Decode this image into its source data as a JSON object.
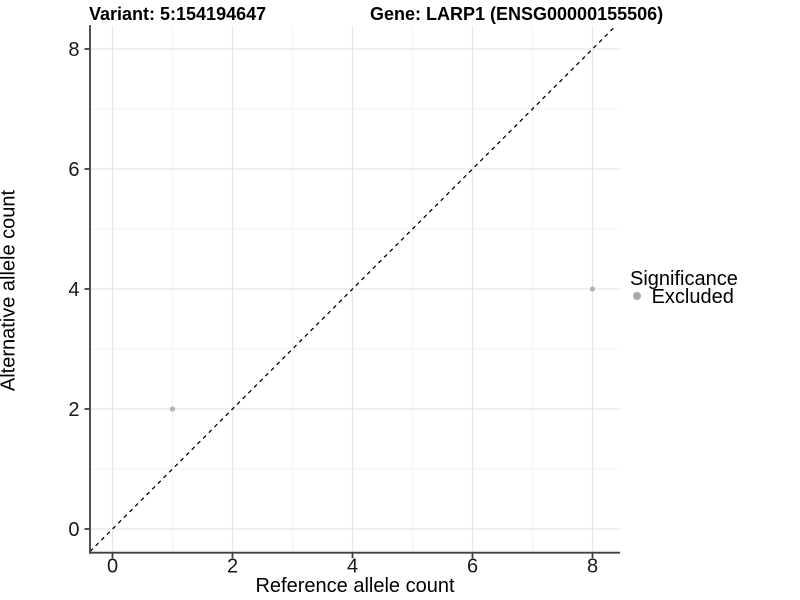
{
  "chart_data": {
    "type": "scatter",
    "titles": {
      "variant": "Variant: 5:154194647",
      "gene": "Gene: LARP1 (ENSG00000155506)"
    },
    "xlabel": "Reference allele count",
    "ylabel": "Alternative allele count",
    "x_ticks": [
      0,
      2,
      4,
      6,
      8
    ],
    "y_ticks": [
      0,
      2,
      4,
      6,
      8
    ],
    "x_minor_ticks": [
      1,
      3,
      5,
      7
    ],
    "y_minor_ticks": [
      1,
      3,
      5,
      7
    ],
    "xlim": [
      -0.375,
      8.46
    ],
    "ylim": [
      -0.395,
      8.39
    ],
    "grid": true,
    "points": [
      {
        "x": 1,
        "y": 2,
        "group": "Excluded"
      },
      {
        "x": 8,
        "y": 4,
        "group": "Excluded"
      }
    ],
    "identity_line": {
      "equation": "y = x",
      "style": "dashed",
      "color": "#000000"
    },
    "legend": {
      "title": "Significance",
      "position": "right",
      "items": [
        {
          "label": "Excluded",
          "color": "#a8a8a8",
          "marker": "circle"
        }
      ]
    },
    "colors": {
      "point": "#b2b2b2",
      "grid_major": "#e7e7e7",
      "grid_minor": "#f3f3f3",
      "axis_line": "#3f3f3f",
      "tick_label": "#1a1a1a"
    }
  }
}
